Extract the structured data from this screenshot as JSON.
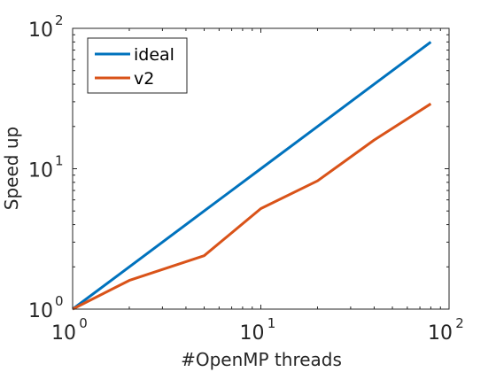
{
  "chart_data": {
    "type": "line",
    "xlabel": "#OpenMP threads",
    "ylabel": "Speed up",
    "xscale": "log",
    "yscale": "log",
    "xlim": [
      1,
      100
    ],
    "ylim": [
      1,
      100
    ],
    "xticks": [
      {
        "value": 1,
        "base": "10",
        "exp": "0"
      },
      {
        "value": 10,
        "base": "10",
        "exp": "1"
      },
      {
        "value": 100,
        "base": "10",
        "exp": "2"
      }
    ],
    "yticks": [
      {
        "value": 1,
        "base": "10",
        "exp": "0"
      },
      {
        "value": 10,
        "base": "10",
        "exp": "1"
      },
      {
        "value": 100,
        "base": "10",
        "exp": "2"
      }
    ],
    "grid": false,
    "legend_position": "top-left",
    "series": [
      {
        "name": "ideal",
        "color": "#0072BD",
        "x": [
          1,
          2,
          5,
          10,
          20,
          40,
          80
        ],
        "y": [
          1,
          2,
          5,
          10,
          20,
          40,
          80
        ]
      },
      {
        "name": "v2",
        "color": "#D95319",
        "x": [
          1,
          2,
          5,
          10,
          20,
          40,
          80
        ],
        "y": [
          1,
          1.6,
          2.4,
          5.2,
          8.2,
          16,
          29
        ]
      }
    ]
  }
}
